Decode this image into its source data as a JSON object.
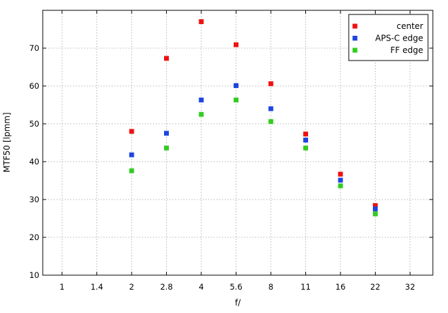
{
  "chart_data": {
    "type": "scatter",
    "title": "",
    "xlabel": "f/",
    "ylabel": "MTF50 [lpmm]",
    "x_categories": [
      "1",
      "1.4",
      "2",
      "2.8",
      "4",
      "5.6",
      "8",
      "11",
      "16",
      "22",
      "32"
    ],
    "ylim": [
      10,
      80
    ],
    "yticks": [
      10,
      20,
      30,
      40,
      50,
      60,
      70
    ],
    "grid": true,
    "legend_position": "top-right",
    "series": [
      {
        "name": "center",
        "color": "#ee1111",
        "points": [
          [
            "2",
            48
          ],
          [
            "2.8",
            67.3
          ],
          [
            "4",
            77
          ],
          [
            "5.6",
            70.9
          ],
          [
            "8",
            60.6
          ],
          [
            "11",
            47.3
          ],
          [
            "16",
            36.7
          ],
          [
            "22",
            28.4
          ]
        ]
      },
      {
        "name": "APS-C edge",
        "color": "#1f45e0",
        "points": [
          [
            "2",
            41.8
          ],
          [
            "2.8",
            47.5
          ],
          [
            "4",
            56.3
          ],
          [
            "5.6",
            60.1
          ],
          [
            "8",
            54
          ],
          [
            "11",
            45.7
          ],
          [
            "16",
            35.1
          ],
          [
            "22",
            27.5
          ]
        ]
      },
      {
        "name": "FF edge",
        "color": "#33cc22",
        "points": [
          [
            "2",
            37.6
          ],
          [
            "2.8",
            43.6
          ],
          [
            "4",
            52.5
          ],
          [
            "5.6",
            56.3
          ],
          [
            "8",
            50.6
          ],
          [
            "11",
            43.6
          ],
          [
            "16",
            33.6
          ],
          [
            "22",
            26.2
          ]
        ]
      }
    ]
  }
}
